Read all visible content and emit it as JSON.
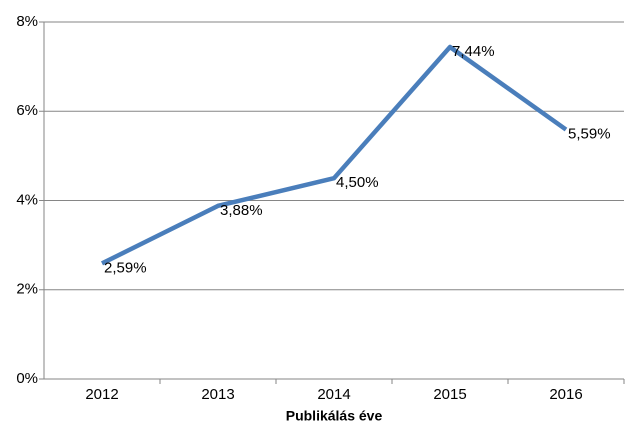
{
  "chart_data": {
    "type": "line",
    "categories": [
      "2012",
      "2013",
      "2014",
      "2015",
      "2016"
    ],
    "series": [
      {
        "name": "",
        "color": "#4a7ebb",
        "values": [
          2.59,
          3.88,
          4.5,
          7.44,
          5.59
        ],
        "value_labels": [
          "2,59%",
          "3,88%",
          "4,50%",
          "7,44%",
          "5,59%"
        ]
      }
    ],
    "xlabel": "Publikálás éve",
    "ylim": [
      0,
      8
    ],
    "yticks": [
      {
        "value": 0,
        "label": "0%"
      },
      {
        "value": 2,
        "label": "2%"
      },
      {
        "value": 4,
        "label": "4%"
      },
      {
        "value": 6,
        "label": "6%"
      },
      {
        "value": 8,
        "label": "8%"
      }
    ],
    "grid": true
  }
}
